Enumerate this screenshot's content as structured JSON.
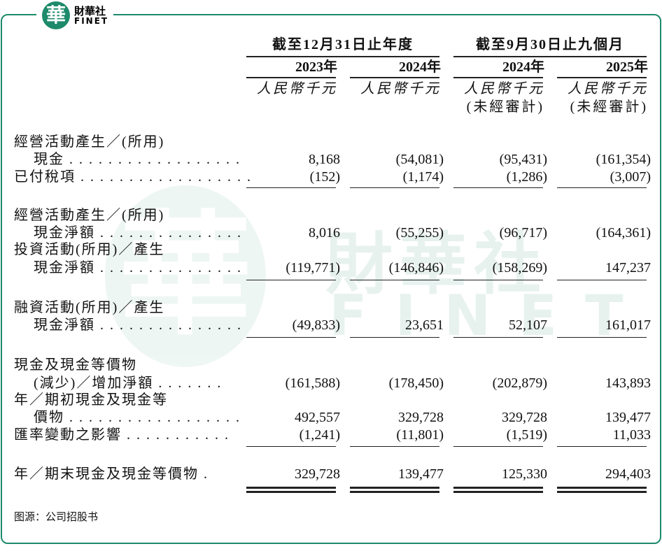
{
  "logo": {
    "glyph": "華",
    "name": "財華社",
    "latin": "FINET"
  },
  "watermark": {
    "glyph": "華",
    "name": "財華社",
    "latin": "FINET"
  },
  "table": {
    "groups": [
      "截至12月31日止年度",
      "截至9月30日止九個月"
    ],
    "years": [
      "2023年",
      "2024年",
      "2024年",
      "2025年"
    ],
    "units": [
      "人民幣千元",
      "人民幣千元",
      "人民幣千元",
      "人民幣千元"
    ],
    "unit_notes": [
      null,
      null,
      "(未經審計)",
      "(未經審計)"
    ],
    "rows": [
      {
        "label": [
          "經營活動產生／(所用)",
          "現金 . . . . . . . . . . . . . . . . . ."
        ],
        "values": [
          "8,168",
          "(54,081)",
          "(95,431)",
          "(161,354)"
        ]
      },
      {
        "label": [
          "已付稅項 . . . . . . . . . . . . . . . . . ."
        ],
        "values": [
          "(152)",
          "(1,174)",
          "(1,286)",
          "(3,007)"
        ]
      },
      {
        "label": [
          "經營活動產生／(所用)",
          "現金淨額 . . . . . . . . . . . . . . ."
        ],
        "values": [
          "8,016",
          "(55,255)",
          "(96,717)",
          "(164,361)"
        ]
      },
      {
        "label": [
          "投資活動(所用)／產生",
          "現金淨額 . . . . . . . . . . . . . . ."
        ],
        "values": [
          "(119,771)",
          "(146,846)",
          "(158,269)",
          "147,237"
        ]
      },
      {
        "label": [
          "融資活動(所用)／產生",
          "現金淨額 . . . . . . . . . . . . . . ."
        ],
        "values": [
          "(49,833)",
          "23,651",
          "52,107",
          "161,017"
        ]
      },
      {
        "label": [
          "現金及現金等價物",
          "(減少)／增加淨額 . . . . . . ."
        ],
        "values": [
          "(161,588)",
          "(178,450)",
          "(202,879)",
          "143,893"
        ]
      },
      {
        "label": [
          "年／期初現金及現金等",
          "價物 . . . . . . . . . . . . . . . . . ."
        ],
        "values": [
          "492,557",
          "329,728",
          "329,728",
          "139,477"
        ]
      },
      {
        "label": [
          "匯率變動之影響 . . . . . . . . . . ."
        ],
        "values": [
          "(1,241)",
          "(11,801)",
          "(1,519)",
          "11,033"
        ]
      },
      {
        "label": [
          "年／期末現金及現金等價物 ."
        ],
        "values": [
          "329,728",
          "139,477",
          "125,330",
          "294,403"
        ]
      }
    ]
  },
  "source": "图源：公司招股书"
}
